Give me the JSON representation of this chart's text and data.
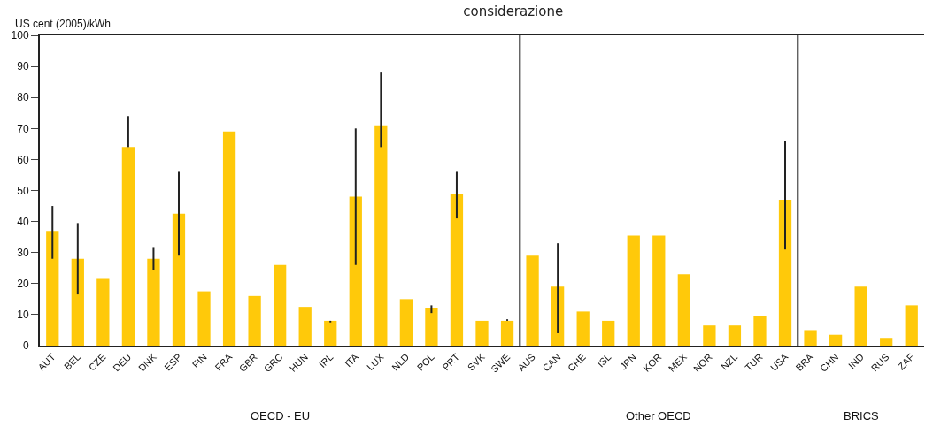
{
  "chart_data": {
    "type": "bar",
    "title": "considerazione",
    "ylabel": "US cent (2005)/kWh",
    "categories": [
      "AUT",
      "BEL",
      "CZE",
      "DEU",
      "DNK",
      "ESP",
      "FIN",
      "FRA",
      "GBR",
      "GRC",
      "HUN",
      "IRL",
      "ITA",
      "LUX",
      "NLD",
      "POL",
      "PRT",
      "SVK",
      "SWE",
      "AUS",
      "CAN",
      "CHE",
      "ISL",
      "JPN",
      "KOR",
      "MEX",
      "NOR",
      "NZL",
      "TUR",
      "USA",
      "BRA",
      "CHN",
      "IND",
      "RUS",
      "ZAF"
    ],
    "values": [
      37,
      28,
      21.5,
      64,
      28,
      42.5,
      17.5,
      69,
      16,
      26,
      12.5,
      8,
      48,
      71,
      15,
      12,
      49,
      8,
      8,
      29,
      19,
      11,
      8,
      35.5,
      35.5,
      23,
      6.5,
      6.5,
      9.5,
      47,
      5,
      3.5,
      19,
      2.5,
      13
    ],
    "errors": [
      [
        28,
        45
      ],
      [
        16.5,
        39.5
      ],
      null,
      [
        64,
        74
      ],
      [
        24.5,
        31.5
      ],
      [
        29,
        56
      ],
      null,
      null,
      null,
      null,
      null,
      [
        7.5,
        8
      ],
      [
        26,
        70
      ],
      [
        64,
        88
      ],
      null,
      [
        10.5,
        13
      ],
      [
        41,
        56
      ],
      null,
      [
        8,
        8.5
      ],
      null,
      [
        4,
        33
      ],
      null,
      null,
      null,
      null,
      null,
      null,
      null,
      null,
      [
        31,
        66
      ],
      null,
      null,
      null,
      null,
      null
    ],
    "color": "#ffc90a",
    "ylim": [
      0,
      100
    ],
    "yticks": [
      0,
      10,
      20,
      30,
      40,
      50,
      60,
      70,
      80,
      90,
      100
    ],
    "grid": false,
    "legend": false,
    "annotations": [
      "OECD - EU",
      "Other OECD",
      "BRICS"
    ]
  }
}
